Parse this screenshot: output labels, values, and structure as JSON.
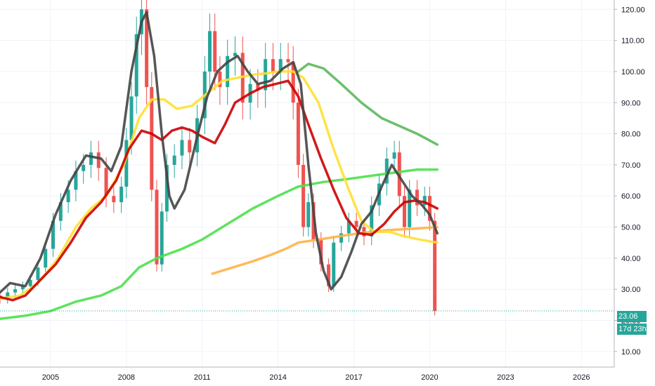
{
  "chart_data": {
    "type": "candlestick",
    "interval": "monthly",
    "last_price": "23.06",
    "countdown": "17d 23h",
    "ylim": [
      5,
      123
    ],
    "xlim": [
      2003.0,
      2027.3
    ],
    "y_ticks": [
      "10.00",
      "20.00",
      "30.00",
      "40.00",
      "50.00",
      "60.00",
      "70.00",
      "80.00",
      "90.00",
      "100.00",
      "110.00",
      "120.00"
    ],
    "x_ticks": [
      "2005",
      "2008",
      "2011",
      "2014",
      "2017",
      "2020",
      "2023",
      "2026"
    ],
    "grid": true,
    "candles": [
      {
        "t": 2003.0,
        "o": 28,
        "c": 27
      },
      {
        "t": 2003.3,
        "o": 27,
        "c": 29
      },
      {
        "t": 2003.6,
        "o": 29,
        "c": 30
      },
      {
        "t": 2003.9,
        "o": 30,
        "c": 31
      },
      {
        "t": 2004.2,
        "o": 31,
        "c": 33
      },
      {
        "t": 2004.5,
        "o": 33,
        "c": 37
      },
      {
        "t": 2004.8,
        "o": 37,
        "c": 43
      },
      {
        "t": 2005.1,
        "o": 43,
        "c": 52
      },
      {
        "t": 2005.4,
        "o": 52,
        "c": 58
      },
      {
        "t": 2005.7,
        "o": 58,
        "c": 62
      },
      {
        "t": 2006.0,
        "o": 62,
        "c": 68
      },
      {
        "t": 2006.3,
        "o": 68,
        "c": 70
      },
      {
        "t": 2006.6,
        "o": 70,
        "c": 74
      },
      {
        "t": 2006.9,
        "o": 74,
        "c": 69
      },
      {
        "t": 2007.2,
        "o": 69,
        "c": 60
      },
      {
        "t": 2007.5,
        "o": 60,
        "c": 58
      },
      {
        "t": 2007.8,
        "o": 58,
        "c": 63
      },
      {
        "t": 2008.0,
        "o": 63,
        "c": 78
      },
      {
        "t": 2008.2,
        "o": 78,
        "c": 92
      },
      {
        "t": 2008.4,
        "o": 92,
        "c": 112
      },
      {
        "t": 2008.6,
        "o": 112,
        "c": 120
      },
      {
        "t": 2008.8,
        "o": 120,
        "c": 95
      },
      {
        "t": 2009.0,
        "o": 95,
        "c": 62
      },
      {
        "t": 2009.2,
        "o": 62,
        "c": 38
      },
      {
        "t": 2009.4,
        "o": 38,
        "c": 55
      },
      {
        "t": 2009.6,
        "o": 55,
        "c": 70
      },
      {
        "t": 2009.9,
        "o": 70,
        "c": 73
      },
      {
        "t": 2010.2,
        "o": 73,
        "c": 78
      },
      {
        "t": 2010.5,
        "o": 78,
        "c": 74
      },
      {
        "t": 2010.8,
        "o": 74,
        "c": 85
      },
      {
        "t": 2011.1,
        "o": 85,
        "c": 100
      },
      {
        "t": 2011.3,
        "o": 100,
        "c": 113
      },
      {
        "t": 2011.5,
        "o": 113,
        "c": 100
      },
      {
        "t": 2011.7,
        "o": 100,
        "c": 95
      },
      {
        "t": 2012.0,
        "o": 95,
        "c": 105
      },
      {
        "t": 2012.3,
        "o": 105,
        "c": 106
      },
      {
        "t": 2012.6,
        "o": 106,
        "c": 90
      },
      {
        "t": 2012.9,
        "o": 90,
        "c": 96
      },
      {
        "t": 2013.2,
        "o": 96,
        "c": 94
      },
      {
        "t": 2013.5,
        "o": 94,
        "c": 104
      },
      {
        "t": 2013.8,
        "o": 104,
        "c": 100
      },
      {
        "t": 2014.1,
        "o": 100,
        "c": 104
      },
      {
        "t": 2014.4,
        "o": 104,
        "c": 103
      },
      {
        "t": 2014.6,
        "o": 103,
        "c": 90
      },
      {
        "t": 2014.8,
        "o": 90,
        "c": 70
      },
      {
        "t": 2015.0,
        "o": 70,
        "c": 50
      },
      {
        "t": 2015.2,
        "o": 50,
        "c": 58
      },
      {
        "t": 2015.4,
        "o": 58,
        "c": 46
      },
      {
        "t": 2015.7,
        "o": 46,
        "c": 38
      },
      {
        "t": 2016.0,
        "o": 38,
        "c": 31
      },
      {
        "t": 2016.2,
        "o": 31,
        "c": 45
      },
      {
        "t": 2016.5,
        "o": 45,
        "c": 48
      },
      {
        "t": 2016.8,
        "o": 48,
        "c": 52
      },
      {
        "t": 2017.1,
        "o": 52,
        "c": 50
      },
      {
        "t": 2017.4,
        "o": 50,
        "c": 47
      },
      {
        "t": 2017.7,
        "o": 47,
        "c": 57
      },
      {
        "t": 2018.0,
        "o": 57,
        "c": 64
      },
      {
        "t": 2018.3,
        "o": 64,
        "c": 72
      },
      {
        "t": 2018.6,
        "o": 72,
        "c": 74
      },
      {
        "t": 2018.8,
        "o": 74,
        "c": 60
      },
      {
        "t": 2019.0,
        "o": 60,
        "c": 50
      },
      {
        "t": 2019.2,
        "o": 50,
        "c": 62
      },
      {
        "t": 2019.5,
        "o": 62,
        "c": 57
      },
      {
        "t": 2019.8,
        "o": 57,
        "c": 60
      },
      {
        "t": 2020.0,
        "o": 60,
        "c": 52
      },
      {
        "t": 2020.2,
        "o": 52,
        "c": 23
      }
    ],
    "series": [
      {
        "color": "#5cb85c",
        "points": [
          [
            2014.8,
            100
          ],
          [
            2015.2,
            102.5
          ],
          [
            2015.8,
            101
          ],
          [
            2016.5,
            96
          ],
          [
            2017.3,
            90
          ],
          [
            2018.1,
            85
          ],
          [
            2018.8,
            82.5
          ],
          [
            2019.5,
            80
          ],
          [
            2020.3,
            76.5
          ]
        ]
      },
      {
        "color": "#4ce04c",
        "points": [
          [
            2003.0,
            20.5
          ],
          [
            2004.0,
            21.5
          ],
          [
            2005.0,
            23
          ],
          [
            2006.0,
            26
          ],
          [
            2007.0,
            28
          ],
          [
            2007.8,
            31
          ],
          [
            2008.5,
            37
          ],
          [
            2009.2,
            40
          ],
          [
            2010.2,
            43
          ],
          [
            2011.0,
            46
          ],
          [
            2012.0,
            51
          ],
          [
            2013.0,
            56
          ],
          [
            2014.0,
            60
          ],
          [
            2014.8,
            63
          ],
          [
            2015.8,
            64.5
          ],
          [
            2016.8,
            65.5
          ],
          [
            2017.7,
            66.5
          ],
          [
            2018.6,
            67.5
          ],
          [
            2019.5,
            68.5
          ],
          [
            2020.3,
            68.5
          ]
        ]
      },
      {
        "color": "#ffb347",
        "points": [
          [
            2011.4,
            35
          ],
          [
            2012.2,
            37
          ],
          [
            2013.0,
            39
          ],
          [
            2013.7,
            41
          ],
          [
            2014.3,
            43
          ],
          [
            2014.8,
            45
          ],
          [
            2016.0,
            46.5
          ],
          [
            2017.2,
            48
          ],
          [
            2018.3,
            49
          ],
          [
            2019.4,
            49.5
          ],
          [
            2020.3,
            50
          ]
        ]
      },
      {
        "color": "#ffe033",
        "points": [
          [
            2003.0,
            27
          ],
          [
            2003.8,
            28
          ],
          [
            2004.5,
            32
          ],
          [
            2005.3,
            40
          ],
          [
            2006.0,
            50
          ],
          [
            2006.6,
            56
          ],
          [
            2007.2,
            60
          ],
          [
            2007.9,
            70
          ],
          [
            2008.5,
            85
          ],
          [
            2009.0,
            91
          ],
          [
            2009.5,
            91
          ],
          [
            2010.0,
            88
          ],
          [
            2010.6,
            89
          ],
          [
            2011.2,
            93
          ],
          [
            2011.8,
            97
          ],
          [
            2012.4,
            98
          ],
          [
            2013.0,
            99
          ],
          [
            2013.6,
            99.5
          ],
          [
            2014.0,
            100
          ],
          [
            2014.6,
            100
          ],
          [
            2015.0,
            98
          ],
          [
            2015.6,
            90
          ],
          [
            2016.2,
            75
          ],
          [
            2016.8,
            62
          ],
          [
            2017.3,
            52
          ],
          [
            2017.8,
            48.5
          ],
          [
            2018.4,
            48.5
          ],
          [
            2019.0,
            47
          ],
          [
            2019.6,
            46
          ],
          [
            2020.3,
            45
          ]
        ]
      },
      {
        "color": "#cc0000",
        "points": [
          [
            2003.0,
            27.5
          ],
          [
            2003.5,
            26.5
          ],
          [
            2004.0,
            28
          ],
          [
            2004.6,
            33
          ],
          [
            2005.2,
            38
          ],
          [
            2005.8,
            45
          ],
          [
            2006.4,
            53
          ],
          [
            2007.0,
            58
          ],
          [
            2007.6,
            65
          ],
          [
            2008.1,
            75
          ],
          [
            2008.6,
            81
          ],
          [
            2009.0,
            80
          ],
          [
            2009.4,
            78
          ],
          [
            2009.8,
            81
          ],
          [
            2010.2,
            82
          ],
          [
            2010.6,
            81
          ],
          [
            2011.0,
            79
          ],
          [
            2011.5,
            77
          ],
          [
            2011.9,
            83
          ],
          [
            2012.3,
            90
          ],
          [
            2012.9,
            93
          ],
          [
            2013.4,
            95
          ],
          [
            2013.9,
            96
          ],
          [
            2014.4,
            97
          ],
          [
            2014.8,
            92
          ],
          [
            2015.2,
            83
          ],
          [
            2015.7,
            72
          ],
          [
            2016.2,
            62
          ],
          [
            2016.7,
            53
          ],
          [
            2017.2,
            48
          ],
          [
            2017.7,
            47.5
          ],
          [
            2018.2,
            51
          ],
          [
            2018.6,
            55
          ],
          [
            2019.0,
            58
          ],
          [
            2019.4,
            58.5
          ],
          [
            2019.8,
            58
          ],
          [
            2020.3,
            56
          ]
        ]
      },
      {
        "color": "#444444",
        "points": [
          [
            2003.0,
            29
          ],
          [
            2003.4,
            32
          ],
          [
            2004.0,
            31
          ],
          [
            2004.6,
            40
          ],
          [
            2005.2,
            54
          ],
          [
            2005.8,
            65
          ],
          [
            2006.4,
            73
          ],
          [
            2007.0,
            72
          ],
          [
            2007.4,
            68
          ],
          [
            2007.8,
            76
          ],
          [
            2008.2,
            100
          ],
          [
            2008.6,
            116
          ],
          [
            2008.8,
            119
          ],
          [
            2009.1,
            105
          ],
          [
            2009.4,
            80
          ],
          [
            2009.7,
            60
          ],
          [
            2009.9,
            56
          ],
          [
            2010.3,
            62
          ],
          [
            2010.8,
            79
          ],
          [
            2011.2,
            92
          ],
          [
            2011.6,
            100
          ],
          [
            2012.0,
            103
          ],
          [
            2012.4,
            105
          ],
          [
            2012.8,
            100
          ],
          [
            2013.2,
            96
          ],
          [
            2013.7,
            97
          ],
          [
            2014.2,
            101
          ],
          [
            2014.6,
            103
          ],
          [
            2014.9,
            96
          ],
          [
            2015.2,
            70
          ],
          [
            2015.5,
            48
          ],
          [
            2015.8,
            36
          ],
          [
            2016.1,
            30
          ],
          [
            2016.5,
            34
          ],
          [
            2016.9,
            42
          ],
          [
            2017.3,
            51
          ],
          [
            2017.7,
            55
          ],
          [
            2018.1,
            63
          ],
          [
            2018.5,
            70
          ],
          [
            2018.9,
            65
          ],
          [
            2019.3,
            60
          ],
          [
            2019.7,
            57
          ],
          [
            2020.0,
            54
          ],
          [
            2020.3,
            48
          ]
        ]
      }
    ]
  }
}
